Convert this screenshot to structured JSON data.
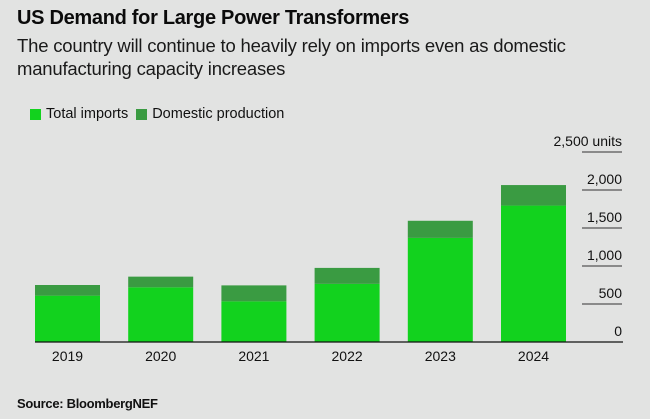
{
  "header": {
    "title": "US Demand for Large Power Transformers",
    "subtitle": "The country will continue to heavily rely on imports even as domestic manufacturing capacity increases"
  },
  "footer": {
    "source": "Source: BloombergNEF"
  },
  "colors": {
    "imports": "#12d21e",
    "domestic": "#3a9b42",
    "background": "#e2e3e2",
    "axis": "#111111"
  },
  "chart_data": {
    "type": "bar",
    "stacked": true,
    "title": "US Demand for Large Power Transformers",
    "subtitle": "The country will continue to heavily rely on imports even as domestic manufacturing capacity increases",
    "xlabel": "",
    "ylabel": "units",
    "categories": [
      "2019",
      "2020",
      "2021",
      "2022",
      "2023",
      "2024"
    ],
    "series": [
      {
        "name": "Total imports",
        "values": [
          610,
          720,
          535,
          765,
          1370,
          1795
        ]
      },
      {
        "name": "Domestic production",
        "values": [
          140,
          140,
          210,
          210,
          225,
          270
        ]
      }
    ],
    "ylim": [
      0,
      2500
    ],
    "yticks": [
      0,
      500,
      1000,
      1500,
      2000,
      2500
    ],
    "ytick_labels": [
      "0",
      "500",
      "1,000",
      "1,500",
      "2,000",
      "2,500 units"
    ],
    "y_axis_side": "right",
    "grid": true,
    "legend_position": "top-left",
    "source": "Source: BloombergNEF"
  }
}
